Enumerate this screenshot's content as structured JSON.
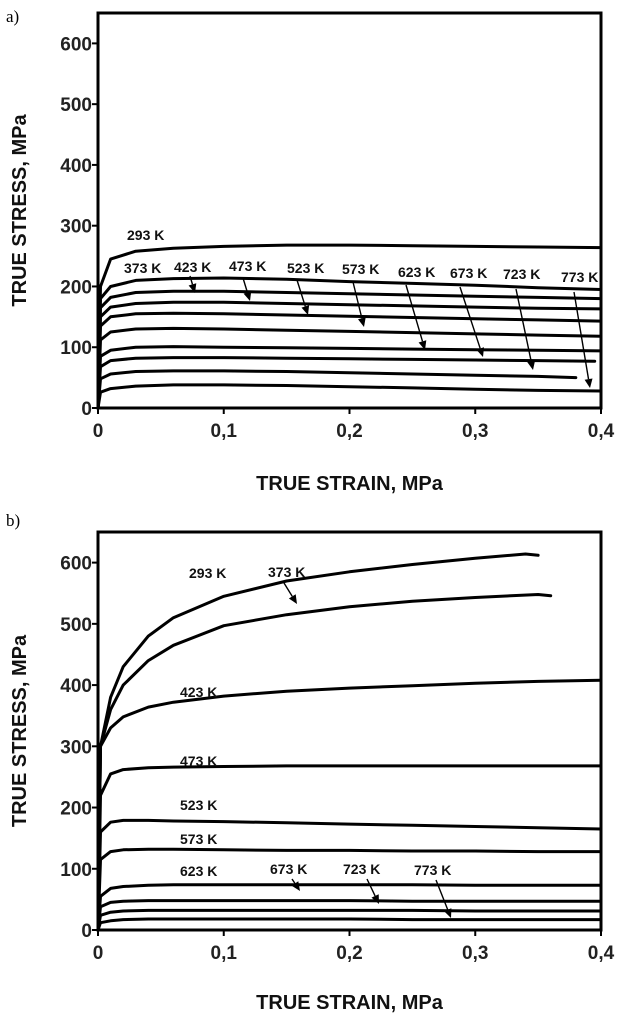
{
  "chart_data": [
    {
      "type": "line",
      "panel_label": "a)",
      "xlabel": "TRUE STRAIN, MPa",
      "ylabel": "TRUE STRESS, MPa",
      "xlim": [
        0,
        0.4
      ],
      "ylim": [
        0,
        650
      ],
      "x_ticks": [
        0,
        0.1,
        0.2,
        0.3,
        0.4
      ],
      "x_tick_labels": [
        "0",
        "0,1",
        "0,2",
        "0,3",
        "0,4"
      ],
      "y_ticks": [
        0,
        100,
        200,
        300,
        400,
        500,
        600
      ],
      "y_tick_labels": [
        "0",
        "100",
        "200",
        "300",
        "400",
        "500",
        "600"
      ],
      "grid": false,
      "series": [
        {
          "name": "293 K",
          "x": [
            0,
            0.002,
            0.01,
            0.03,
            0.06,
            0.1,
            0.15,
            0.2,
            0.25,
            0.3,
            0.35,
            0.4
          ],
          "y": [
            0,
            200,
            245,
            258,
            263,
            266,
            268,
            268,
            267,
            266,
            265,
            264
          ]
        },
        {
          "name": "373 K",
          "x": [
            0,
            0.002,
            0.01,
            0.03,
            0.06,
            0.1,
            0.15,
            0.2,
            0.25,
            0.3,
            0.35,
            0.4
          ],
          "y": [
            0,
            180,
            200,
            210,
            213,
            214,
            212,
            208,
            205,
            202,
            198,
            195
          ]
        },
        {
          "name": "423 K",
          "x": [
            0,
            0.002,
            0.01,
            0.03,
            0.06,
            0.1,
            0.15,
            0.2,
            0.25,
            0.3,
            0.35,
            0.4
          ],
          "y": [
            0,
            165,
            182,
            190,
            192,
            192,
            190,
            188,
            186,
            184,
            182,
            180
          ]
        },
        {
          "name": "473 K",
          "x": [
            0,
            0.002,
            0.01,
            0.03,
            0.06,
            0.1,
            0.15,
            0.2,
            0.25,
            0.3,
            0.35,
            0.4
          ],
          "y": [
            0,
            150,
            166,
            172,
            174,
            174,
            172,
            170,
            168,
            166,
            164,
            163
          ]
        },
        {
          "name": "523 K",
          "x": [
            0,
            0.002,
            0.01,
            0.03,
            0.06,
            0.1,
            0.15,
            0.2,
            0.25,
            0.3,
            0.35,
            0.4
          ],
          "y": [
            0,
            135,
            150,
            155,
            156,
            155,
            153,
            151,
            149,
            147,
            145,
            143
          ]
        },
        {
          "name": "573 K",
          "x": [
            0,
            0.002,
            0.01,
            0.03,
            0.06,
            0.1,
            0.15,
            0.2,
            0.25,
            0.3,
            0.35,
            0.4
          ],
          "y": [
            0,
            112,
            125,
            130,
            131,
            130,
            128,
            126,
            124,
            122,
            120,
            118
          ]
        },
        {
          "name": "623 K",
          "x": [
            0,
            0.002,
            0.01,
            0.03,
            0.06,
            0.1,
            0.15,
            0.2,
            0.25,
            0.3,
            0.35,
            0.4
          ],
          "y": [
            0,
            85,
            95,
            100,
            101,
            100,
            99,
            98,
            97,
            96,
            95,
            94
          ]
        },
        {
          "name": "673 K",
          "x": [
            0,
            0.002,
            0.01,
            0.03,
            0.06,
            0.1,
            0.15,
            0.2,
            0.25,
            0.3,
            0.35,
            0.395
          ],
          "y": [
            0,
            68,
            78,
            82,
            83,
            83,
            82,
            81,
            80,
            79,
            78,
            77
          ]
        },
        {
          "name": "723 K",
          "x": [
            0,
            0.002,
            0.01,
            0.03,
            0.06,
            0.1,
            0.15,
            0.2,
            0.25,
            0.3,
            0.35,
            0.38
          ],
          "y": [
            0,
            48,
            56,
            60,
            61,
            61,
            60,
            58,
            56,
            54,
            52,
            50
          ]
        },
        {
          "name": "773 K",
          "x": [
            0,
            0.002,
            0.01,
            0.03,
            0.06,
            0.1,
            0.15,
            0.2,
            0.25,
            0.3,
            0.35,
            0.4
          ],
          "y": [
            0,
            26,
            32,
            36,
            38,
            38,
            37,
            35,
            33,
            31,
            29,
            28
          ]
        }
      ]
    },
    {
      "type": "line",
      "panel_label": "b)",
      "xlabel": "TRUE STRAIN, MPa",
      "ylabel": "TRUE STRESS, MPa",
      "xlim": [
        0,
        0.4
      ],
      "ylim": [
        0,
        650
      ],
      "x_ticks": [
        0,
        0.1,
        0.2,
        0.3,
        0.4
      ],
      "x_tick_labels": [
        "0",
        "0,1",
        "0,2",
        "0,3",
        "0,4"
      ],
      "y_ticks": [
        0,
        100,
        200,
        300,
        400,
        500,
        600
      ],
      "y_tick_labels": [
        "0",
        "100",
        "200",
        "300",
        "400",
        "500",
        "600"
      ],
      "grid": false,
      "series": [
        {
          "name": "293 K",
          "x": [
            0,
            0.002,
            0.01,
            0.02,
            0.04,
            0.06,
            0.1,
            0.15,
            0.2,
            0.25,
            0.3,
            0.34,
            0.35
          ],
          "y": [
            0,
            300,
            380,
            430,
            480,
            510,
            545,
            570,
            585,
            597,
            607,
            614,
            612
          ]
        },
        {
          "name": "373 K",
          "x": [
            0,
            0.002,
            0.01,
            0.02,
            0.04,
            0.06,
            0.1,
            0.15,
            0.2,
            0.25,
            0.3,
            0.35,
            0.36
          ],
          "y": [
            0,
            300,
            360,
            400,
            440,
            465,
            497,
            515,
            528,
            537,
            543,
            548,
            546
          ]
        },
        {
          "name": "423 K",
          "x": [
            0,
            0.002,
            0.01,
            0.02,
            0.04,
            0.06,
            0.1,
            0.15,
            0.2,
            0.25,
            0.3,
            0.35,
            0.4
          ],
          "y": [
            0,
            300,
            330,
            348,
            364,
            372,
            382,
            390,
            395,
            399,
            403,
            406,
            408
          ]
        },
        {
          "name": "473 K",
          "x": [
            0,
            0.002,
            0.01,
            0.02,
            0.04,
            0.06,
            0.1,
            0.15,
            0.2,
            0.25,
            0.3,
            0.35,
            0.4
          ],
          "y": [
            0,
            220,
            255,
            262,
            265,
            266,
            267,
            268,
            268,
            268,
            268,
            268,
            268
          ]
        },
        {
          "name": "523 K",
          "x": [
            0,
            0.002,
            0.01,
            0.02,
            0.04,
            0.06,
            0.1,
            0.15,
            0.2,
            0.25,
            0.3,
            0.35,
            0.4
          ],
          "y": [
            0,
            160,
            176,
            179,
            179,
            178,
            177,
            175,
            173,
            171,
            169,
            167,
            165
          ]
        },
        {
          "name": "573 K",
          "x": [
            0,
            0.002,
            0.01,
            0.02,
            0.04,
            0.06,
            0.1,
            0.15,
            0.2,
            0.25,
            0.3,
            0.35,
            0.4
          ],
          "y": [
            0,
            115,
            128,
            131,
            132,
            132,
            131,
            130,
            130,
            129,
            129,
            128,
            128
          ]
        },
        {
          "name": "623 K",
          "x": [
            0,
            0.002,
            0.01,
            0.02,
            0.04,
            0.06,
            0.1,
            0.15,
            0.2,
            0.25,
            0.3,
            0.35,
            0.4
          ],
          "y": [
            0,
            55,
            68,
            71,
            73,
            74,
            74,
            74,
            74,
            74,
            73,
            73,
            73
          ]
        },
        {
          "name": "673 K",
          "x": [
            0,
            0.002,
            0.01,
            0.02,
            0.04,
            0.06,
            0.1,
            0.15,
            0.2,
            0.25,
            0.3,
            0.35,
            0.4
          ],
          "y": [
            0,
            38,
            45,
            47,
            48,
            48,
            48,
            48,
            48,
            47,
            47,
            47,
            47
          ]
        },
        {
          "name": "723 K",
          "x": [
            0,
            0.002,
            0.01,
            0.02,
            0.04,
            0.06,
            0.1,
            0.15,
            0.2,
            0.25,
            0.3,
            0.35,
            0.4
          ],
          "y": [
            0,
            24,
            29,
            31,
            32,
            32,
            32,
            32,
            32,
            32,
            31,
            31,
            31
          ]
        },
        {
          "name": "773 K",
          "x": [
            0,
            0.002,
            0.01,
            0.02,
            0.04,
            0.06,
            0.1,
            0.15,
            0.2,
            0.25,
            0.3,
            0.35,
            0.4
          ],
          "y": [
            0,
            12,
            15,
            17,
            18,
            18,
            18,
            18,
            18,
            17,
            17,
            17,
            17
          ]
        }
      ]
    }
  ]
}
